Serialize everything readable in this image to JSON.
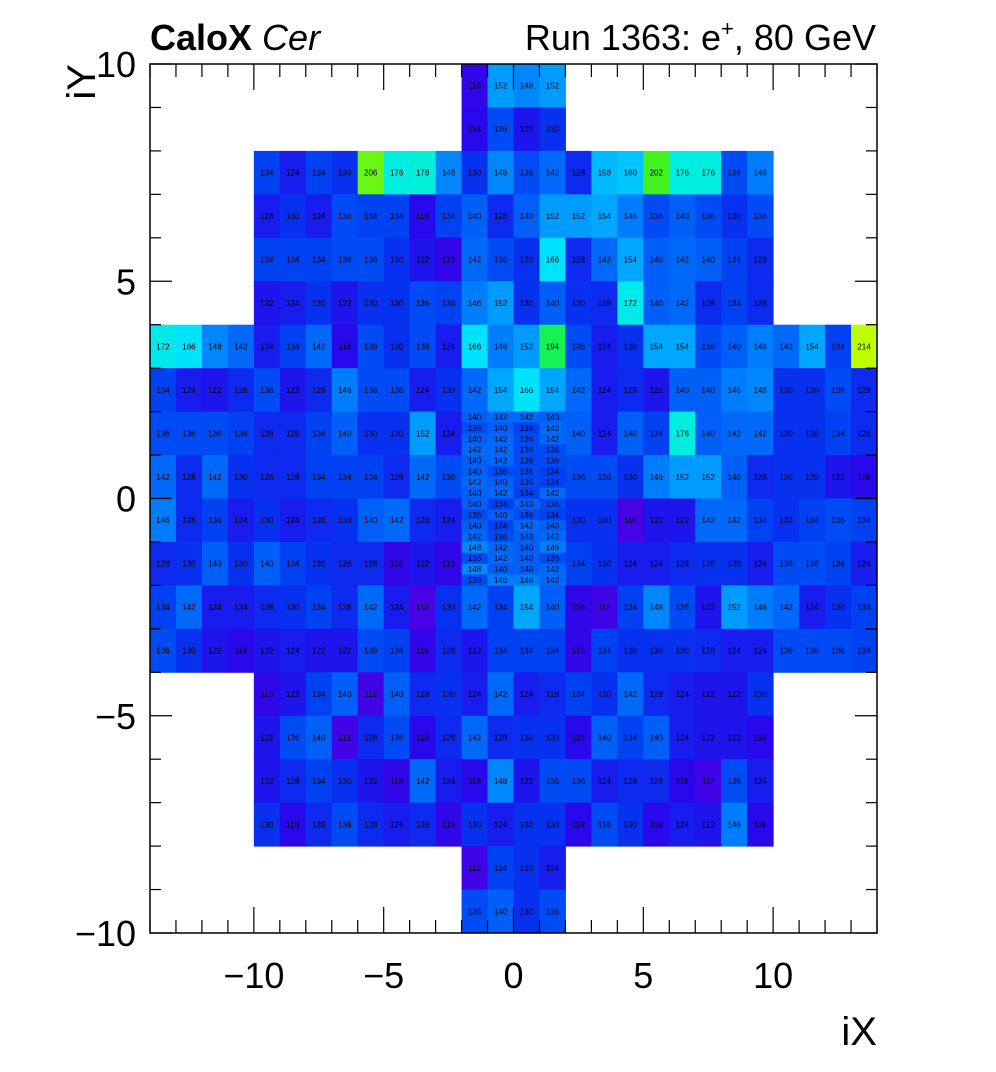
{
  "chart_data": {
    "type": "heatmap",
    "title_bold": "CaloX",
    "title_italic": "Cer",
    "run_label": "Run 1363: e",
    "run_sup": "+",
    "run_energy": ", 80 GeV",
    "xlabel": "iX",
    "ylabel": "iY",
    "xlim": [
      -14,
      14
    ],
    "ylim": [
      -10,
      10
    ],
    "x_ticks": [
      -10,
      -5,
      0,
      5,
      10
    ],
    "y_ticks": [
      -10,
      -5,
      0,
      5,
      10
    ],
    "x_tick_labels": [
      "−10",
      "−5",
      "0",
      "5",
      "10"
    ],
    "y_tick_labels": [
      "−10",
      "−5",
      "0",
      "5",
      "10"
    ],
    "color_range": [
      105,
      215
    ],
    "rows": [
      {
        "y": [
          9,
          10
        ],
        "x0": -2,
        "w": 1,
        "values": [
          116,
          152,
          148,
          152
        ]
      },
      {
        "y": [
          8,
          9
        ],
        "x0": -2,
        "w": 1,
        "values": [
          118,
          136,
          122,
          130
        ]
      },
      {
        "y": [
          7,
          8
        ],
        "x0": -10,
        "w": 1,
        "values": [
          134,
          124,
          134,
          130,
          206,
          176,
          178,
          148,
          130,
          148,
          136,
          142,
          128,
          158,
          160,
          202,
          176,
          176,
          136,
          146
        ]
      },
      {
        "y": [
          6,
          7
        ],
        "x0": -10,
        "w": 1,
        "values": [
          124,
          130,
          124,
          136,
          134,
          134,
          118,
          134,
          140,
          128,
          140,
          152,
          152,
          154,
          146,
          136,
          140,
          136,
          130,
          136
        ]
      },
      {
        "y": [
          5,
          6
        ],
        "x0": -10,
        "w": 1,
        "values": [
          134,
          134,
          134,
          136,
          136,
          130,
          122,
          116,
          142,
          136,
          130,
          166,
          128,
          142,
          154,
          140,
          142,
          140,
          134,
          128
        ]
      },
      {
        "y": [
          4,
          5
        ],
        "x0": -10,
        "w": 1,
        "values": [
          122,
          124,
          130,
          122,
          130,
          130,
          136,
          134,
          146,
          152,
          130,
          140,
          130,
          128,
          172,
          140,
          142,
          128,
          134,
          128
        ]
      },
      {
        "y": [
          3,
          4
        ],
        "x0": -14,
        "w": 1,
        "values": [
          172,
          166,
          148,
          142,
          124,
          134,
          142,
          118,
          136,
          130,
          136,
          124,
          166,
          146,
          152,
          194,
          136,
          124,
          130,
          154,
          154,
          136,
          140,
          146,
          142,
          154,
          134,
          214
        ]
      },
      {
        "y": [
          2,
          3
        ],
        "x0": -14,
        "w": 1,
        "values": [
          134,
          124,
          122,
          128,
          136,
          122,
          128,
          146,
          136,
          136,
          124,
          130,
          142,
          154,
          166,
          154,
          142,
          124,
          128,
          122,
          140,
          140,
          146,
          148,
          130,
          130,
          136,
          128
        ]
      },
      {
        "y": [
          1,
          2
        ],
        "x0": -14,
        "w": 1,
        "values": [
          136,
          136,
          136,
          134,
          128,
          128,
          134,
          140,
          130,
          130,
          152,
          124,
          null,
          null,
          null,
          null,
          140,
          124,
          140,
          134,
          176,
          140,
          142,
          142,
          130,
          130,
          134,
          128
        ]
      },
      {
        "y": [
          0,
          1
        ],
        "x0": -14,
        "w": 1,
        "values": [
          142,
          128,
          142,
          130,
          128,
          128,
          134,
          134,
          134,
          128,
          142,
          136,
          null,
          null,
          null,
          null,
          136,
          136,
          130,
          146,
          152,
          152,
          140,
          128,
          130,
          130,
          122,
          118
        ]
      },
      {
        "y": [
          -1,
          0
        ],
        "x0": -14,
        "w": 1,
        "values": [
          146,
          128,
          134,
          124,
          130,
          124,
          128,
          130,
          140,
          142,
          128,
          124,
          null,
          null,
          null,
          null,
          130,
          130,
          110,
          122,
          122,
          142,
          142,
          134,
          130,
          134,
          136,
          134
        ]
      },
      {
        "y": [
          -2,
          -1
        ],
        "x0": -14,
        "w": 1,
        "values": [
          128,
          130,
          140,
          130,
          140,
          134,
          130,
          128,
          128,
          116,
          122,
          116,
          null,
          null,
          null,
          null,
          134,
          130,
          124,
          124,
          128,
          130,
          130,
          124,
          136,
          136,
          134,
          124
        ]
      },
      {
        "y": [
          -3,
          -2
        ],
        "x0": -14,
        "w": 1,
        "values": [
          134,
          142,
          124,
          124,
          128,
          130,
          134,
          128,
          142,
          124,
          110,
          130,
          142,
          134,
          154,
          140,
          116,
          112,
          134,
          148,
          136,
          122,
          152,
          146,
          142,
          124,
          130,
          134
        ]
      },
      {
        "y": [
          -4,
          -3
        ],
        "x0": -14,
        "w": 1,
        "values": [
          136,
          130,
          122,
          118,
          122,
          124,
          122,
          122,
          136,
          134,
          116,
          128,
          122,
          134,
          134,
          134,
          116,
          134,
          130,
          130,
          130,
          128,
          124,
          124,
          136,
          136,
          136,
          134
        ]
      },
      {
        "y": [
          -5,
          -4
        ],
        "x0": -10,
        "w": 1,
        "values": [
          116,
          122,
          134,
          140,
          112,
          140,
          128,
          130,
          124,
          142,
          124,
          128,
          134,
          130,
          142,
          128,
          124,
          122,
          122,
          130
        ]
      },
      {
        "y": [
          -6,
          -5
        ],
        "x0": -10,
        "w": 1,
        "values": [
          122,
          136,
          140,
          112,
          128,
          136,
          118,
          128,
          142,
          128,
          130,
          130,
          118,
          140,
          134,
          140,
          124,
          122,
          122,
          118
        ]
      },
      {
        "y": [
          -7,
          -6
        ],
        "x0": -10,
        "w": 1,
        "values": [
          122,
          128,
          134,
          130,
          122,
          116,
          142,
          124,
          118,
          148,
          122,
          136,
          136,
          124,
          128,
          128,
          118,
          112,
          136,
          124
        ]
      },
      {
        "y": [
          -8,
          -7
        ],
        "x0": -10,
        "w": 1,
        "values": [
          130,
          118,
          128,
          136,
          128,
          124,
          128,
          116,
          130,
          124,
          130,
          130,
          118,
          136,
          130,
          118,
          124,
          122,
          146,
          118
        ]
      },
      {
        "y": [
          -9,
          -8
        ],
        "x0": -2,
        "w": 1,
        "values": [
          112,
          134,
          130,
          124
        ]
      },
      {
        "y": [
          -10,
          -9
        ],
        "x0": -2,
        "w": 1,
        "values": [
          136,
          140,
          130,
          136
        ]
      },
      {
        "y": [
          1.75,
          2
        ],
        "x0": -2,
        "w": 1,
        "values": [
          140,
          142,
          142,
          140
        ]
      },
      {
        "y": [
          1.5,
          1.75
        ],
        "x0": -2,
        "w": 1,
        "values": [
          136,
          140,
          134,
          142
        ]
      },
      {
        "y": [
          1.25,
          1.5
        ],
        "x0": -2,
        "w": 1,
        "values": [
          140,
          142,
          136,
          142
        ]
      },
      {
        "y": [
          1,
          1.25
        ],
        "x0": -2,
        "w": 1,
        "values": [
          142,
          142,
          136,
          136
        ]
      },
      {
        "y": [
          0.75,
          1
        ],
        "x0": -2,
        "w": 1,
        "values": [
          140,
          142,
          136,
          136
        ]
      },
      {
        "y": [
          0.5,
          0.75
        ],
        "x0": -2,
        "w": 1,
        "values": [
          140,
          136,
          136,
          134
        ]
      },
      {
        "y": [
          0.25,
          0.5
        ],
        "x0": -2,
        "w": 1,
        "values": [
          142,
          140,
          136,
          134
        ]
      },
      {
        "y": [
          0,
          0.25
        ],
        "x0": -2,
        "w": 1,
        "values": [
          140,
          142,
          134,
          142
        ]
      },
      {
        "y": [
          -0.25,
          0
        ],
        "x0": -2,
        "w": 1,
        "values": [
          140,
          134,
          140,
          136
        ]
      },
      {
        "y": [
          -0.5,
          -0.25
        ],
        "x0": -2,
        "w": 1,
        "values": [
          136,
          140,
          136,
          134
        ]
      },
      {
        "y": [
          -0.75,
          -0.5
        ],
        "x0": -2,
        "w": 1,
        "values": [
          140,
          134,
          142,
          140
        ]
      },
      {
        "y": [
          -1,
          -0.75
        ],
        "x0": -2,
        "w": 1,
        "values": [
          142,
          136,
          140,
          142
        ]
      },
      {
        "y": [
          -1.25,
          -1
        ],
        "x0": -2,
        "w": 1,
        "values": [
          148,
          142,
          140,
          146
        ]
      },
      {
        "y": [
          -1.5,
          -1.25
        ],
        "x0": -2,
        "w": 1,
        "values": [
          136,
          142,
          140,
          136
        ]
      },
      {
        "y": [
          -1.75,
          -1.5
        ],
        "x0": -2,
        "w": 1,
        "values": [
          148,
          140,
          140,
          142
        ]
      },
      {
        "y": [
          -2,
          -1.75
        ],
        "x0": -2,
        "w": 1,
        "values": [
          136,
          146,
          146,
          142
        ]
      }
    ]
  }
}
